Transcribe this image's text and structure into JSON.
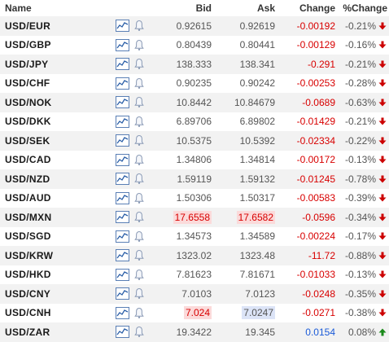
{
  "columns": {
    "name": "Name",
    "bid": "Bid",
    "ask": "Ask",
    "change": "Change",
    "pct_change": "%Change"
  },
  "icons": {
    "chart": "chart-icon",
    "bell": "bell-icon",
    "down": "arrow-down-icon",
    "up": "arrow-up-icon"
  },
  "colors": {
    "negative": "#d80000",
    "positive": "#1a5ad8",
    "up_arrow": "#1a8a1a",
    "down_arrow": "#cc0000"
  },
  "rows": [
    {
      "name": "USD/EUR",
      "bid": "0.92615",
      "ask": "0.92619",
      "change": "-0.00192",
      "pct": "-0.21%",
      "dir": "down"
    },
    {
      "name": "USD/GBP",
      "bid": "0.80439",
      "ask": "0.80441",
      "change": "-0.00129",
      "pct": "-0.16%",
      "dir": "down"
    },
    {
      "name": "USD/JPY",
      "bid": "138.333",
      "ask": "138.341",
      "change": "-0.291",
      "pct": "-0.21%",
      "dir": "down"
    },
    {
      "name": "USD/CHF",
      "bid": "0.90235",
      "ask": "0.90242",
      "change": "-0.00253",
      "pct": "-0.28%",
      "dir": "down"
    },
    {
      "name": "USD/NOK",
      "bid": "10.8442",
      "ask": "10.84679",
      "change": "-0.0689",
      "pct": "-0.63%",
      "dir": "down"
    },
    {
      "name": "USD/DKK",
      "bid": "6.89706",
      "ask": "6.89802",
      "change": "-0.01429",
      "pct": "-0.21%",
      "dir": "down"
    },
    {
      "name": "USD/SEK",
      "bid": "10.5375",
      "ask": "10.5392",
      "change": "-0.02334",
      "pct": "-0.22%",
      "dir": "down"
    },
    {
      "name": "USD/CAD",
      "bid": "1.34806",
      "ask": "1.34814",
      "change": "-0.00172",
      "pct": "-0.13%",
      "dir": "down"
    },
    {
      "name": "USD/NZD",
      "bid": "1.59119",
      "ask": "1.59132",
      "change": "-0.01245",
      "pct": "-0.78%",
      "dir": "down"
    },
    {
      "name": "USD/AUD",
      "bid": "1.50306",
      "ask": "1.50317",
      "change": "-0.00583",
      "pct": "-0.39%",
      "dir": "down"
    },
    {
      "name": "USD/MXN",
      "bid": "17.6558",
      "ask": "17.6582",
      "change": "-0.0596",
      "pct": "-0.34%",
      "dir": "down",
      "flash": "red"
    },
    {
      "name": "USD/SGD",
      "bid": "1.34573",
      "ask": "1.34589",
      "change": "-0.00224",
      "pct": "-0.17%",
      "dir": "down"
    },
    {
      "name": "USD/KRW",
      "bid": "1323.02",
      "ask": "1323.48",
      "change": "-11.72",
      "pct": "-0.88%",
      "dir": "down"
    },
    {
      "name": "USD/HKD",
      "bid": "7.81623",
      "ask": "7.81671",
      "change": "-0.01033",
      "pct": "-0.13%",
      "dir": "down"
    },
    {
      "name": "USD/CNY",
      "bid": "7.0103",
      "ask": "7.0123",
      "change": "-0.0248",
      "pct": "-0.35%",
      "dir": "down"
    },
    {
      "name": "USD/CNH",
      "bid": "7.024",
      "ask": "7.0247",
      "change": "-0.0271",
      "pct": "-0.38%",
      "dir": "down",
      "flash": "mixed"
    },
    {
      "name": "USD/ZAR",
      "bid": "19.3422",
      "ask": "19.345",
      "change": "0.0154",
      "pct": "0.08%",
      "dir": "up"
    }
  ]
}
